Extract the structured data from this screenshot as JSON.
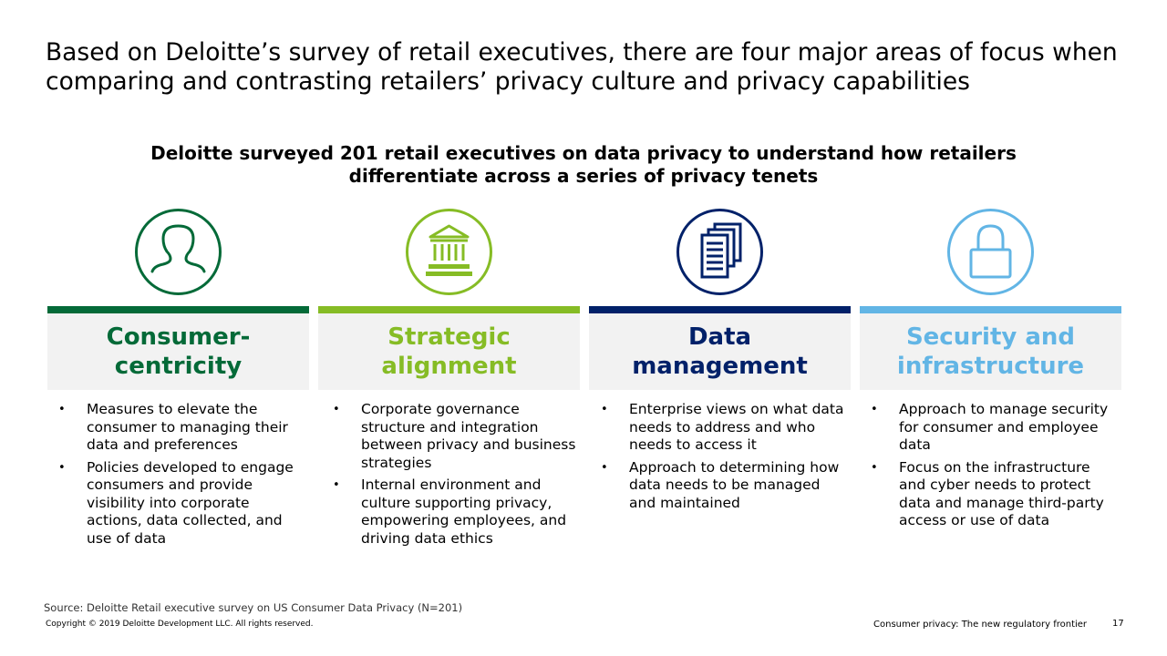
{
  "title": "Based on Deloitte’s survey of retail executives, there are four major areas of focus when comparing and contrasting retailers’ privacy culture and privacy capabilities",
  "subtitle": "Deloitte surveyed 201 retail executives on data privacy to understand how retailers differentiate across a series of privacy tenets",
  "columns": [
    {
      "heading": "Consumer-\ncentricity",
      "color": "#046a38",
      "icon": "person-icon",
      "bullets": [
        "Measures to elevate the consumer to managing their data and preferences",
        "Policies developed to engage consumers and provide visibility into corporate actions, data collected, and use of data"
      ]
    },
    {
      "heading": "Strategic\nalignment",
      "color": "#86bc25",
      "icon": "institution-icon",
      "bullets": [
        "Corporate governance structure and integration between privacy and business strategies",
        "Internal environment and culture supporting privacy, empowering employees, and driving data ethics"
      ]
    },
    {
      "heading": "Data\nmanagement",
      "color": "#012169",
      "icon": "documents-icon",
      "bullets": [
        "Enterprise views on what data needs to address and who needs to access it",
        "Approach to determining how data needs to be managed and maintained"
      ]
    },
    {
      "heading": "Security and\ninfrastructure",
      "color": "#62b5e5",
      "icon": "lock-icon",
      "bullets": [
        "Approach to manage security for consumer and employee data",
        "Focus on the infrastructure and cyber needs to protect data and manage third-party access or use of data"
      ]
    }
  ],
  "bullet_glyph": "•",
  "footer": {
    "source": "Source: Deloitte Retail executive survey on US Consumer Data Privacy (N=201)",
    "copyright": "Copyright © 2019 Deloitte Development LLC. All rights reserved.",
    "report_title": "Consumer privacy: The new regulatory frontier",
    "page_number": "17"
  }
}
